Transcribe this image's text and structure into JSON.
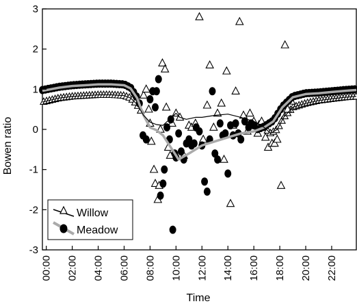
{
  "chart_data": {
    "type": "line",
    "xlabel": "Time",
    "ylabel": "Bowen ratio",
    "xlim": [
      -0.3,
      23.9
    ],
    "ylim": [
      -3,
      3
    ],
    "x_ticks": [
      "00:00",
      "02:00",
      "04:00",
      "06:00",
      "08:00",
      "10:00",
      "12:00",
      "14:00",
      "16:00",
      "18:00",
      "20:00",
      "22:00"
    ],
    "x_tick_hours": [
      0,
      2,
      4,
      6,
      8,
      10,
      12,
      14,
      16,
      18,
      20,
      22
    ],
    "y_ticks": [
      -3,
      -2,
      -1,
      0,
      1,
      2,
      3
    ],
    "grid": false,
    "legend_position": "bottom-left",
    "series": [
      {
        "name": "Willow",
        "marker": "open-triangle",
        "line_color": "#000000",
        "marker_color": "#000000",
        "points": [
          [
            7.5,
            0.85
          ],
          [
            7.7,
            1.0
          ],
          [
            7.9,
            0.5
          ],
          [
            8.0,
            0.15
          ],
          [
            8.1,
            -0.3
          ],
          [
            8.3,
            -1.0
          ],
          [
            8.4,
            -1.35
          ],
          [
            8.6,
            -1.75
          ],
          [
            8.7,
            -1.4
          ],
          [
            8.8,
            0.0
          ],
          [
            8.95,
            1.65
          ],
          [
            9.15,
            1.5
          ],
          [
            9.25,
            0.55
          ],
          [
            9.4,
            -0.45
          ],
          [
            9.55,
            -0.65
          ],
          [
            9.7,
            0.15
          ],
          [
            10.0,
            0.4
          ],
          [
            10.3,
            0.3
          ],
          [
            10.6,
            -0.65
          ],
          [
            11.0,
            0.1
          ],
          [
            11.2,
            0.05
          ],
          [
            11.5,
            0.15
          ],
          [
            11.8,
            2.8
          ],
          [
            12.1,
            -0.25
          ],
          [
            12.4,
            0.6
          ],
          [
            12.6,
            1.6
          ],
          [
            12.9,
            0.05
          ],
          [
            13.2,
            0.4
          ],
          [
            13.5,
            0.65
          ],
          [
            13.7,
            -0.75
          ],
          [
            13.9,
            1.45
          ],
          [
            14.2,
            -1.85
          ],
          [
            14.4,
            0.1
          ],
          [
            14.6,
            0.95
          ],
          [
            14.9,
            2.68
          ],
          [
            15.2,
            0.35
          ],
          [
            15.5,
            -0.05
          ],
          [
            15.7,
            0.4
          ],
          [
            16.0,
            0.2
          ],
          [
            16.3,
            -0.1
          ],
          [
            16.6,
            0.2
          ],
          [
            16.9,
            -0.2
          ],
          [
            17.1,
            -0.45
          ],
          [
            17.4,
            -0.35
          ],
          [
            17.6,
            -0.35
          ],
          [
            17.8,
            -0.25
          ],
          [
            18.1,
            -1.4
          ],
          [
            18.4,
            2.1
          ],
          [
            18.6,
            0.5
          ],
          [
            18.9,
            0.7
          ]
        ],
        "trend": [
          [
            -0.3,
            0.68
          ],
          [
            1.0,
            0.78
          ],
          [
            2.0,
            0.82
          ],
          [
            3.0,
            0.84
          ],
          [
            4.0,
            0.86
          ],
          [
            5.0,
            0.86
          ],
          [
            6.0,
            0.84
          ],
          [
            6.5,
            0.78
          ],
          [
            7.0,
            0.62
          ],
          [
            7.5,
            0.35
          ],
          [
            8.0,
            0.18
          ],
          [
            8.5,
            0.12
          ],
          [
            9.0,
            0.1
          ],
          [
            10.0,
            0.4
          ],
          [
            10.3,
            0.3
          ],
          [
            10.8,
            0.25
          ],
          [
            11.5,
            0.3
          ],
          [
            12.0,
            0.3
          ],
          [
            13.0,
            0.35
          ],
          [
            14.0,
            0.38
          ],
          [
            15.0,
            0.3
          ],
          [
            16.0,
            0.2
          ],
          [
            16.8,
            0.05
          ],
          [
            17.3,
            -0.1
          ],
          [
            17.8,
            0.0
          ],
          [
            18.3,
            0.3
          ],
          [
            19.0,
            0.55
          ],
          [
            20.0,
            0.65
          ],
          [
            21.0,
            0.72
          ],
          [
            22.0,
            0.76
          ],
          [
            23.0,
            0.8
          ],
          [
            23.9,
            0.82
          ]
        ],
        "triangle_band_step": 0.22
      },
      {
        "name": "Meadow",
        "marker": "filled-circle",
        "line_color": "#aaaaaa",
        "marker_color": "#000000",
        "points": [
          [
            7.45,
            -0.15
          ],
          [
            7.7,
            -0.25
          ],
          [
            8.0,
            0.75
          ],
          [
            8.2,
            0.95
          ],
          [
            8.4,
            0.55
          ],
          [
            8.5,
            0.95
          ],
          [
            8.65,
            1.25
          ],
          [
            8.8,
            -1.65
          ],
          [
            9.0,
            -1.35
          ],
          [
            9.1,
            -1.0
          ],
          [
            9.3,
            0.05
          ],
          [
            9.5,
            -0.25
          ],
          [
            9.6,
            0.25
          ],
          [
            9.75,
            -2.5
          ],
          [
            9.9,
            -0.6
          ],
          [
            10.0,
            -0.7
          ],
          [
            10.2,
            -0.1
          ],
          [
            10.4,
            -0.55
          ],
          [
            10.6,
            -0.75
          ],
          [
            10.8,
            -0.35
          ],
          [
            11.0,
            -0.25
          ],
          [
            11.2,
            -0.4
          ],
          [
            11.4,
            -0.35
          ],
          [
            11.55,
            0.05
          ],
          [
            11.8,
            -0.05
          ],
          [
            12.0,
            -0.4
          ],
          [
            12.2,
            -1.3
          ],
          [
            12.4,
            -1.55
          ],
          [
            12.6,
            -0.25
          ],
          [
            12.8,
            0.95
          ],
          [
            13.0,
            -0.6
          ],
          [
            13.2,
            -0.75
          ],
          [
            13.4,
            0.15
          ],
          [
            13.6,
            -0.15
          ],
          [
            13.8,
            -0.1
          ],
          [
            14.0,
            -1.1
          ],
          [
            14.2,
            0.1
          ],
          [
            14.4,
            -0.15
          ],
          [
            14.6,
            0.15
          ],
          [
            14.8,
            -0.1
          ],
          [
            15.0,
            -0.25
          ],
          [
            15.3,
            0.2
          ],
          [
            15.6,
            0.05
          ],
          [
            15.8,
            0.15
          ],
          [
            16.0,
            0.1
          ]
        ],
        "trend": [
          [
            -0.3,
            0.96
          ],
          [
            1.0,
            1.04
          ],
          [
            2.0,
            1.08
          ],
          [
            3.0,
            1.1
          ],
          [
            4.0,
            1.12
          ],
          [
            5.0,
            1.12
          ],
          [
            6.0,
            1.1
          ],
          [
            6.5,
            1.02
          ],
          [
            7.0,
            0.78
          ],
          [
            7.5,
            0.35
          ],
          [
            8.0,
            0.05
          ],
          [
            8.5,
            -0.02
          ],
          [
            9.0,
            -0.15
          ],
          [
            9.5,
            -0.4
          ],
          [
            10.2,
            -0.75
          ],
          [
            11.0,
            -0.6
          ],
          [
            12.0,
            -0.4
          ],
          [
            13.0,
            -0.3
          ],
          [
            14.0,
            -0.2
          ],
          [
            15.0,
            -0.1
          ],
          [
            16.0,
            -0.05
          ],
          [
            16.8,
            0.05
          ],
          [
            17.5,
            0.2
          ],
          [
            18.2,
            0.55
          ],
          [
            19.0,
            0.8
          ],
          [
            20.0,
            0.88
          ],
          [
            21.0,
            0.9
          ],
          [
            22.0,
            0.93
          ],
          [
            23.0,
            0.96
          ],
          [
            23.9,
            0.98
          ]
        ],
        "circle_band_step": 0.22
      }
    ]
  }
}
